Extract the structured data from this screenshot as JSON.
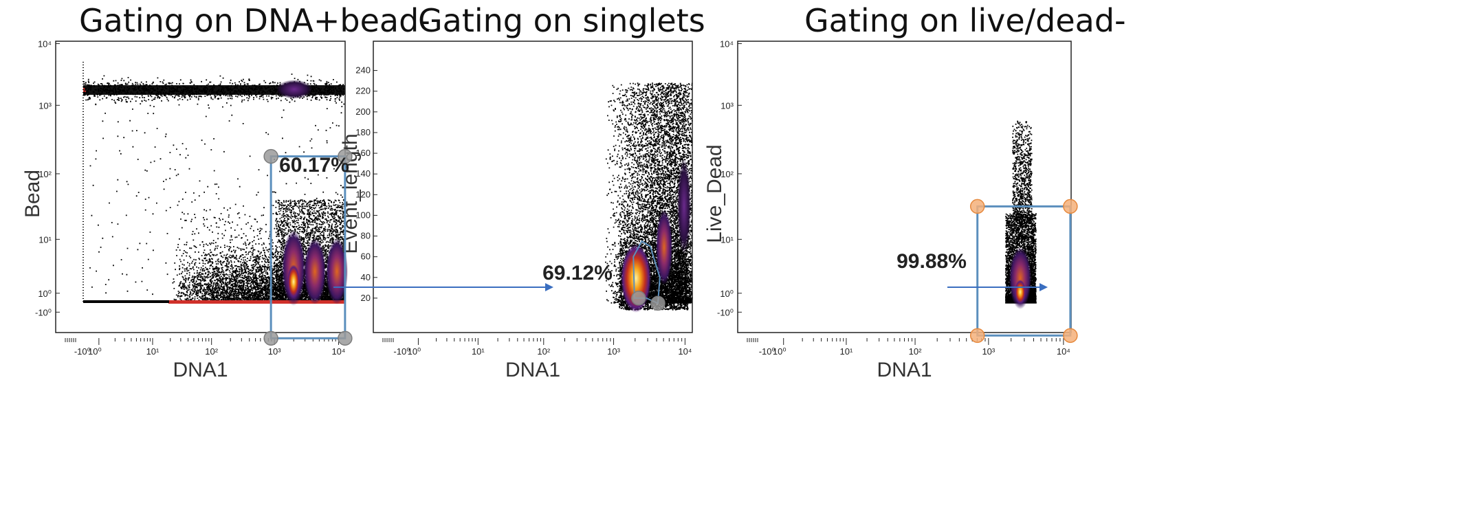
{
  "chart_data": [
    {
      "type": "scatter",
      "subtype": "flow-cytometry density plot",
      "title": "Gating on DNA+bead-",
      "xlabel": "DNA1",
      "ylabel": "Bead",
      "x_scale": "biexponential (log-like)",
      "y_scale": "biexponential (log-like)",
      "xlim": [
        -1,
        12000
      ],
      "ylim": [
        -1,
        12000
      ],
      "x_ticks": [
        "-10⁰",
        "10⁰",
        "10¹",
        "10²",
        "10³",
        "10⁴"
      ],
      "y_ticks": [
        "-10⁰",
        "10⁰",
        "10¹",
        "10²",
        "10³",
        "10⁴"
      ],
      "gate": {
        "shape": "rectangle",
        "x_range": [
          1000,
          12000
        ],
        "y_range": [
          -1,
          130
        ],
        "label": "60.17%",
        "handle_color": "#9a9a9a"
      },
      "populations": [
        {
          "name": "",
          "x_range": [
            1,
            12000
          ],
          "y": 2500
        },
        {
          "name": "",
          "x_range": [
            30,
            12000
          ],
          "y_range": [
            0,
            80
          ]
        }
      ]
    },
    {
      "type": "scatter",
      "subtype": "flow-cytometry density plot",
      "title": "Gating on singlets",
      "xlabel": "DNA1",
      "ylabel": "Event_length",
      "x_scale": "biexponential (log-like)",
      "y_scale": "linear",
      "xlim": [
        -1,
        12000
      ],
      "ylim": [
        0,
        255
      ],
      "x_ticks": [
        "-10⁰",
        "10⁰",
        "10¹",
        "10²",
        "10³",
        "10⁴"
      ],
      "y_ticks": [
        "20",
        "40",
        "60",
        "80",
        "100",
        "120",
        "140",
        "160",
        "180",
        "200",
        "220",
        "240"
      ],
      "gate": {
        "shape": "polygon",
        "label": "69.12%",
        "handle_color": "#9a9a9a",
        "vertices": [
          [
            1500,
            20
          ],
          [
            1450,
            60
          ],
          [
            1900,
            75
          ],
          [
            2500,
            70
          ],
          [
            3400,
            40
          ],
          [
            3200,
            15
          ],
          [
            2200,
            20
          ]
        ]
      },
      "populations": [
        {
          "name": "",
          "x_range": [
            1200,
            12000
          ],
          "y_range": [
            15,
            250
          ]
        }
      ]
    },
    {
      "type": "scatter",
      "subtype": "flow-cytometry density plot",
      "title": "Gating on live/dead-",
      "xlabel": "DNA1",
      "ylabel": "Live_Dead",
      "x_scale": "biexponential (log-like)",
      "y_scale": "biexponential (log-like)",
      "xlim": [
        -1,
        12000
      ],
      "ylim": [
        -1,
        12000
      ],
      "x_ticks": [
        "-10⁰",
        "10⁰",
        "10¹",
        "10²",
        "10³",
        "10⁴"
      ],
      "y_ticks": [
        "-10⁰",
        "10⁰",
        "10¹",
        "10²",
        "10³",
        "10⁴"
      ],
      "gate": {
        "shape": "rectangle",
        "x_range": [
          500,
          10000
        ],
        "y_range": [
          -1,
          35
        ],
        "label": "99.88%",
        "handle_color": "#f5b07a"
      },
      "populations": [
        {
          "name": "",
          "x_range": [
            1500,
            3000
          ],
          "y_range": [
            0,
            1000
          ]
        }
      ]
    }
  ],
  "colors": {
    "gate_line": "#5b8fbd",
    "arrow": "#3a6ec0",
    "density_low": "#000000",
    "density_mid": "#5a1e7e",
    "density_high": "#ffe27a"
  }
}
